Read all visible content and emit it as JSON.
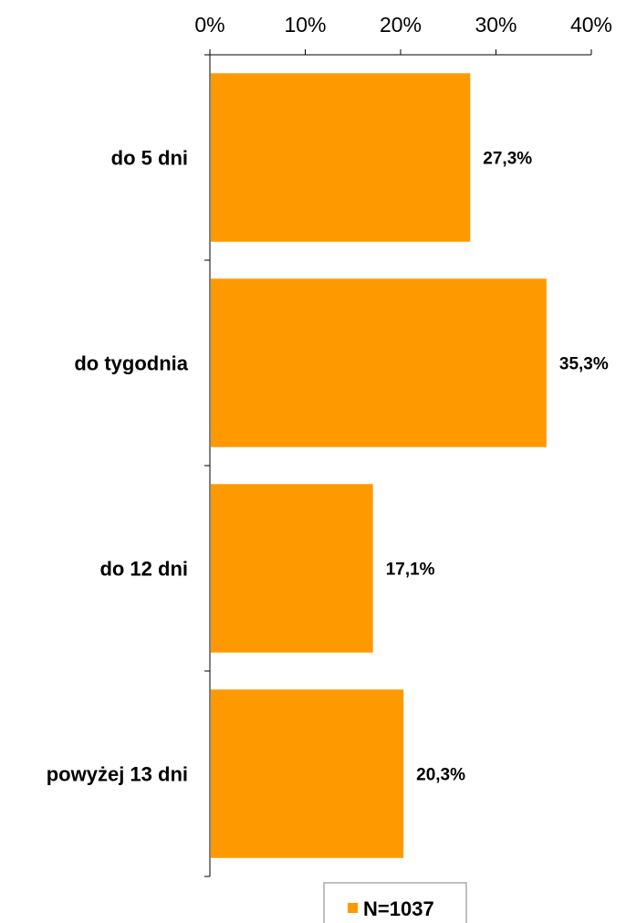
{
  "chart_data": {
    "type": "bar",
    "orientation": "horizontal",
    "categories": [
      "do 5 dni",
      "do tygodnia",
      "do 12 dni",
      "powyżej 13 dni"
    ],
    "series": [
      {
        "name": "N=1037",
        "values": [
          27.3,
          35.3,
          17.1,
          20.3
        ],
        "data_labels": [
          "27,3%",
          "35,3%",
          "17,1%",
          "20,3%"
        ],
        "color": "#FF9900"
      }
    ],
    "x_ticks": [
      0,
      10,
      20,
      30,
      40
    ],
    "x_tick_labels": [
      "0%",
      "10%",
      "20%",
      "30%",
      "40%"
    ],
    "xlim": [
      0,
      40
    ],
    "x_axis_position": "top",
    "grid": false,
    "legend_position": "bottom",
    "title": "",
    "xlabel": "",
    "ylabel": ""
  }
}
